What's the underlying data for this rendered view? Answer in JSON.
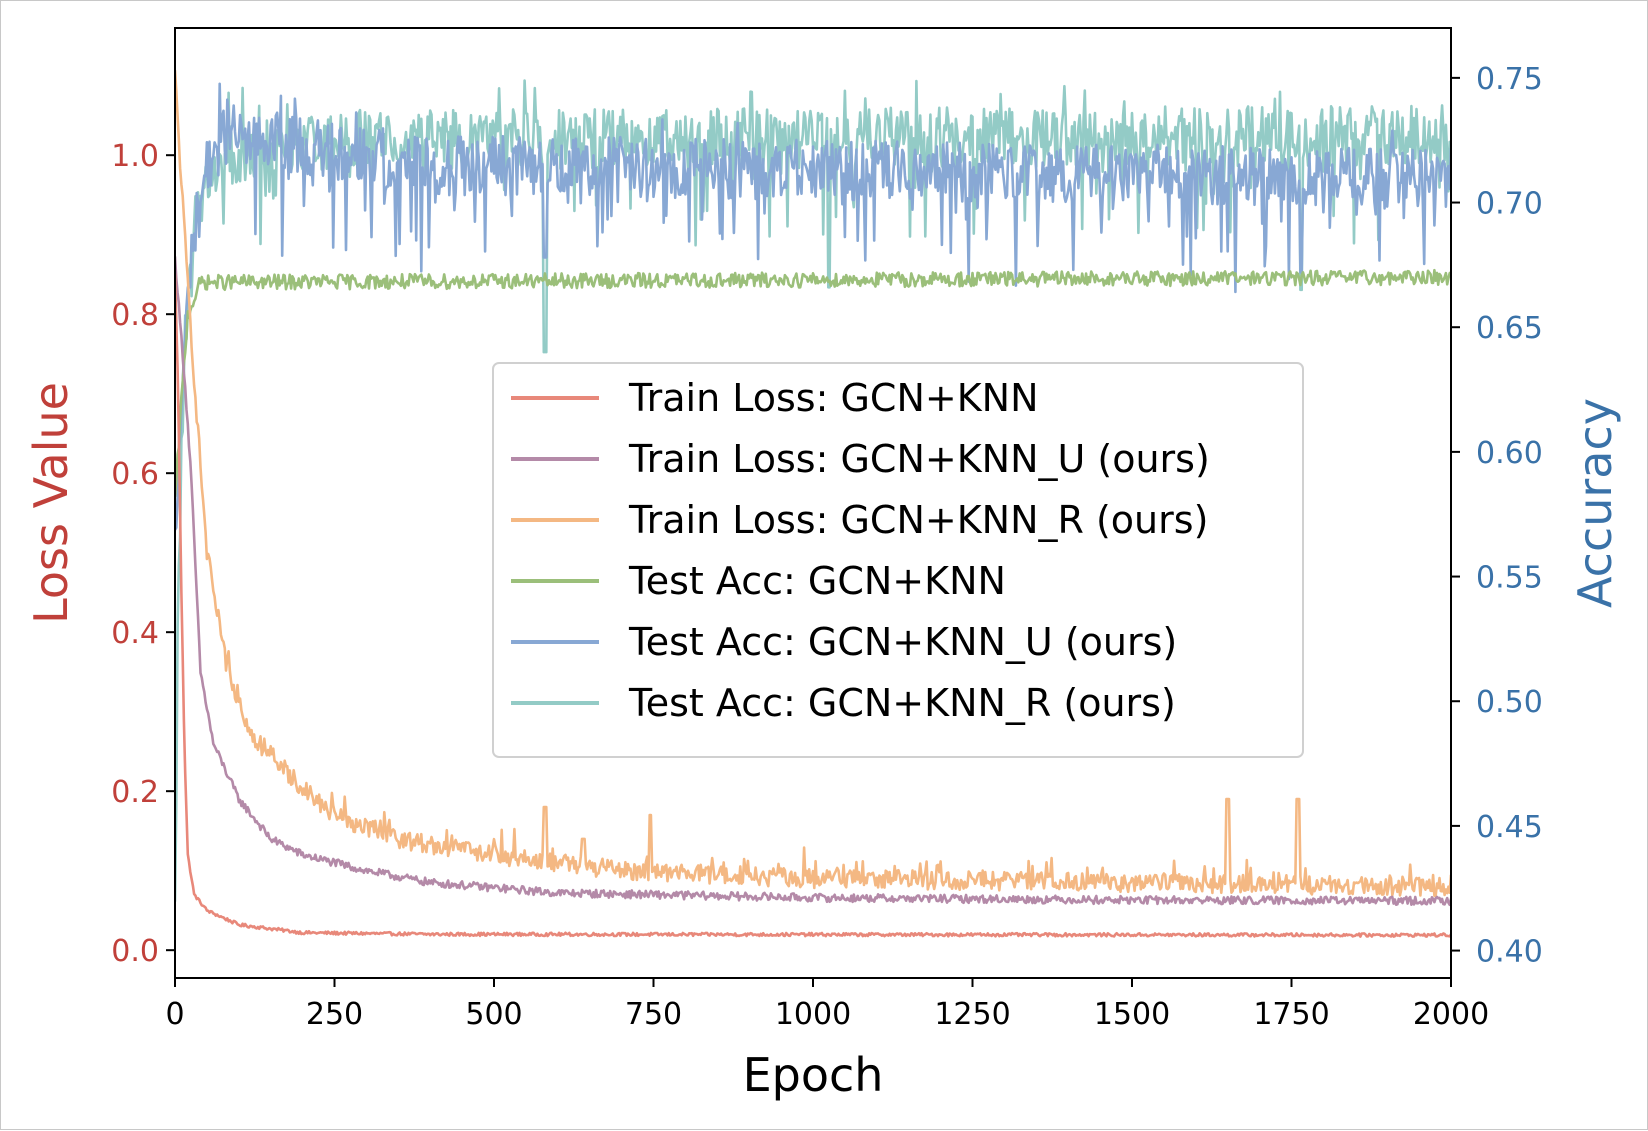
{
  "chart_data": {
    "type": "line",
    "title": "",
    "xlabel": "Epoch",
    "ylabel_left": "Loss Value",
    "ylabel_right": "Accuracy",
    "xlim": [
      0,
      2000
    ],
    "ylim_left": [
      -0.035,
      1.16
    ],
    "ylim_right": [
      0.389,
      0.77
    ],
    "x_ticks": [
      "0",
      "250",
      "500",
      "750",
      "1000",
      "1250",
      "1500",
      "1750",
      "2000"
    ],
    "y_left_ticks": [
      "0.0",
      "0.2",
      "0.4",
      "0.6",
      "0.8",
      "1.0"
    ],
    "y_right_ticks": [
      "0.40",
      "0.45",
      "0.50",
      "0.55",
      "0.60",
      "0.65",
      "0.70",
      "0.75"
    ],
    "grid": false,
    "legend_position": "center-right",
    "colors": {
      "left_axis": "#c0403a",
      "right_axis": "#3a72a8"
    },
    "series": [
      {
        "name": "Train Loss: GCN+KNN",
        "axis": "left",
        "color": "#e8887a",
        "base": [
          [
            0,
            0.85
          ],
          [
            5,
            0.7
          ],
          [
            10,
            0.45
          ],
          [
            15,
            0.25
          ],
          [
            20,
            0.12
          ],
          [
            30,
            0.07
          ],
          [
            50,
            0.05
          ],
          [
            100,
            0.032
          ],
          [
            200,
            0.022
          ],
          [
            400,
            0.02
          ],
          [
            2000,
            0.019
          ]
        ],
        "noise": 0.002
      },
      {
        "name": "Train Loss: GCN+KNN_U (ours)",
        "axis": "left",
        "color": "#b48aa8",
        "base": [
          [
            0,
            0.87
          ],
          [
            15,
            0.72
          ],
          [
            25,
            0.6
          ],
          [
            40,
            0.35
          ],
          [
            60,
            0.26
          ],
          [
            100,
            0.19
          ],
          [
            150,
            0.14
          ],
          [
            200,
            0.12
          ],
          [
            300,
            0.1
          ],
          [
            400,
            0.085
          ],
          [
            600,
            0.072
          ],
          [
            1000,
            0.066
          ],
          [
            1500,
            0.063
          ],
          [
            2000,
            0.062
          ]
        ],
        "noise": 0.005
      },
      {
        "name": "Train Loss: GCN+KNN_R (ours)",
        "axis": "left",
        "color": "#f4b883",
        "base": [
          [
            0,
            1.1
          ],
          [
            15,
            0.9
          ],
          [
            30,
            0.72
          ],
          [
            50,
            0.5
          ],
          [
            80,
            0.36
          ],
          [
            120,
            0.27
          ],
          [
            180,
            0.22
          ],
          [
            250,
            0.17
          ],
          [
            350,
            0.14
          ],
          [
            500,
            0.12
          ],
          [
            700,
            0.1
          ],
          [
            1000,
            0.09
          ],
          [
            1500,
            0.085
          ],
          [
            2000,
            0.08
          ]
        ],
        "noise": 0.012,
        "spikes": [
          [
            580,
            0.18
          ],
          [
            640,
            0.14
          ],
          [
            745,
            0.17
          ],
          [
            1650,
            0.19
          ],
          [
            1760,
            0.19
          ]
        ]
      },
      {
        "name": "Test Acc: GCN+KNN",
        "axis": "right",
        "color": "#9bbf7a",
        "base": [
          [
            0,
            0.58
          ],
          [
            10,
            0.62
          ],
          [
            20,
            0.655
          ],
          [
            40,
            0.668
          ],
          [
            2000,
            0.67
          ]
        ],
        "noise": 0.003
      },
      {
        "name": "Test Acc: GCN+KNN_U (ours)",
        "axis": "right",
        "color": "#88a8d4",
        "base": [
          [
            0,
            0.56
          ],
          [
            10,
            0.62
          ],
          [
            25,
            0.68
          ],
          [
            50,
            0.715
          ],
          [
            80,
            0.73
          ],
          [
            150,
            0.725
          ],
          [
            400,
            0.715
          ],
          [
            2000,
            0.71
          ]
        ],
        "noise": 0.012,
        "dips": [
          [
            580,
            0.678
          ],
          [
            1765,
            0.672
          ]
        ]
      },
      {
        "name": "Test Acc: GCN+KNN_R (ours)",
        "axis": "right",
        "color": "#93cbc6",
        "base": [
          [
            0,
            0.41
          ],
          [
            5,
            0.55
          ],
          [
            15,
            0.64
          ],
          [
            35,
            0.7
          ],
          [
            70,
            0.718
          ],
          [
            200,
            0.725
          ],
          [
            2000,
            0.727
          ]
        ],
        "noise": 0.012,
        "dips": [
          [
            580,
            0.64
          ],
          [
            1765,
            0.665
          ],
          [
            1025,
            0.666
          ]
        ]
      }
    ]
  }
}
